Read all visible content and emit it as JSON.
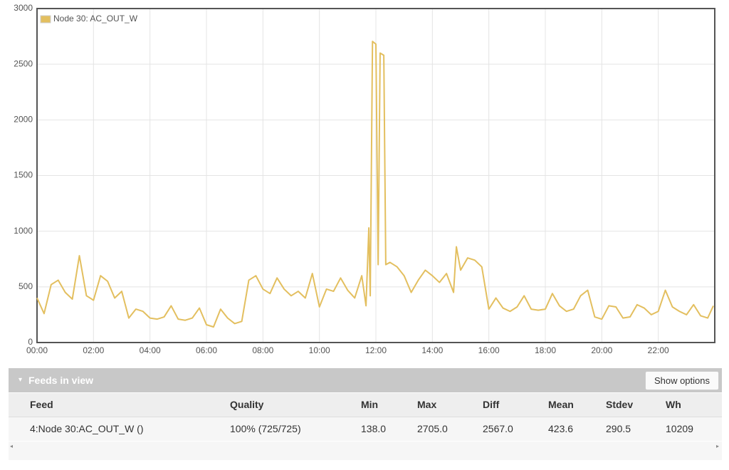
{
  "chart_data": {
    "type": "line",
    "x": [
      0,
      0.25,
      0.5,
      0.75,
      1,
      1.25,
      1.5,
      1.75,
      2,
      2.25,
      2.5,
      2.75,
      3,
      3.25,
      3.5,
      3.75,
      4,
      4.25,
      4.5,
      4.75,
      5,
      5.25,
      5.5,
      5.75,
      6,
      6.25,
      6.5,
      6.75,
      7,
      7.25,
      7.5,
      7.75,
      8,
      8.25,
      8.5,
      8.75,
      9,
      9.25,
      9.5,
      9.75,
      10,
      10.25,
      10.5,
      10.75,
      11,
      11.25,
      11.5,
      11.65,
      11.75,
      11.8,
      11.88,
      12,
      12.08,
      12.15,
      12.28,
      12.35,
      12.5,
      12.75,
      13,
      13.25,
      13.5,
      13.75,
      14,
      14.25,
      14.5,
      14.75,
      14.85,
      15,
      15.25,
      15.5,
      15.75,
      16,
      16.25,
      16.5,
      16.75,
      17,
      17.25,
      17.5,
      17.75,
      18,
      18.25,
      18.5,
      18.75,
      19,
      19.25,
      19.5,
      19.75,
      20,
      20.25,
      20.5,
      20.75,
      21,
      21.25,
      21.5,
      21.75,
      22,
      22.25,
      22.5,
      22.75,
      23,
      23.25,
      23.5,
      23.75,
      23.95
    ],
    "series": [
      {
        "name": "Node 30: AC_OUT_W",
        "color": "#e3bf5f",
        "values": [
          400,
          260,
          520,
          560,
          450,
          390,
          780,
          420,
          380,
          600,
          550,
          400,
          460,
          220,
          300,
          280,
          220,
          210,
          230,
          330,
          210,
          200,
          220,
          310,
          160,
          140,
          300,
          220,
          170,
          190,
          560,
          600,
          480,
          440,
          580,
          480,
          420,
          460,
          400,
          620,
          320,
          480,
          460,
          580,
          470,
          400,
          600,
          330,
          1030,
          420,
          2705,
          2680,
          700,
          2600,
          2580,
          700,
          720,
          680,
          600,
          450,
          560,
          650,
          600,
          540,
          620,
          450,
          860,
          650,
          760,
          740,
          680,
          300,
          400,
          310,
          280,
          320,
          420,
          300,
          290,
          300,
          440,
          330,
          280,
          300,
          420,
          470,
          230,
          210,
          330,
          320,
          220,
          230,
          340,
          310,
          250,
          280,
          470,
          320,
          280,
          250,
          340,
          240,
          220,
          330
        ]
      }
    ],
    "xlim": [
      0,
      24
    ],
    "xticks": [
      {
        "value": 0,
        "label": "00:00"
      },
      {
        "value": 2,
        "label": "02:00"
      },
      {
        "value": 4,
        "label": "04:00"
      },
      {
        "value": 6,
        "label": "06:00"
      },
      {
        "value": 8,
        "label": "08:00"
      },
      {
        "value": 10,
        "label": "10:00"
      },
      {
        "value": 12,
        "label": "12:00"
      },
      {
        "value": 14,
        "label": "14:00"
      },
      {
        "value": 16,
        "label": "16:00"
      },
      {
        "value": 18,
        "label": "18:00"
      },
      {
        "value": 20,
        "label": "20:00"
      },
      {
        "value": 22,
        "label": "22:00"
      }
    ],
    "ylim": [
      0,
      3000
    ],
    "yticks": [
      0,
      500,
      1000,
      1500,
      2000,
      2500,
      3000
    ],
    "grid": true,
    "legend": "top-left"
  },
  "panel": {
    "title": "Feeds in view",
    "button": "Show options"
  },
  "table": {
    "columns": [
      "Feed",
      "Quality",
      "Min",
      "Max",
      "Diff",
      "Mean",
      "Stdev",
      "Wh"
    ],
    "rows": [
      [
        "4:Node 30:AC_OUT_W ()",
        "100% (725/725)",
        "138.0",
        "2705.0",
        "2567.0",
        "423.6",
        "290.5",
        "10209"
      ]
    ]
  }
}
